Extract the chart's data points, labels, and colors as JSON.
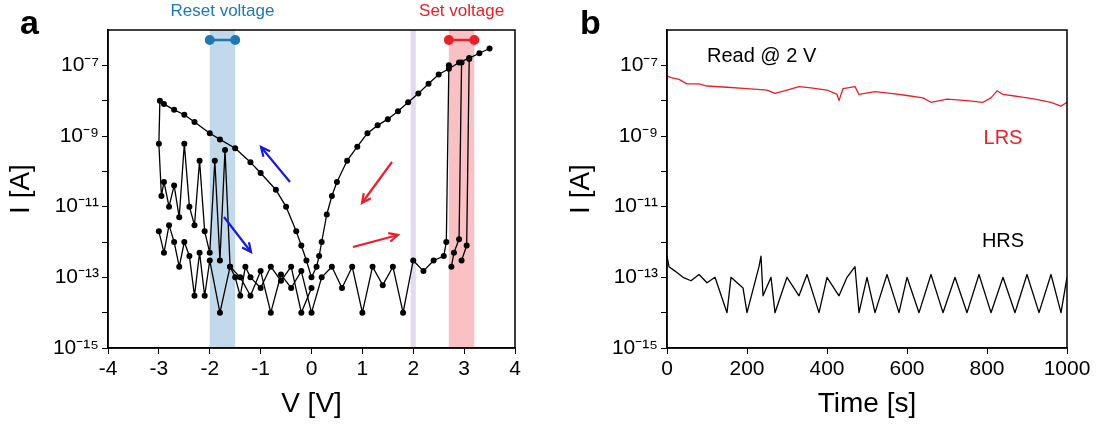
{
  "chart_data": [
    {
      "type": "line",
      "xlabel": "V [V]",
      "ylabel": "I [A]",
      "annotations": [
        "a"
      ],
      "log": "y",
      "grid": false,
      "legend": false,
      "marker": "circle",
      "xlim": [
        -4,
        4
      ],
      "xticks": [
        -4,
        -3,
        -2,
        -1,
        0,
        1,
        2,
        3,
        4
      ],
      "ylim": [
        1e-15,
        1e-06
      ],
      "yticks": [
        {
          "value": 1e-15,
          "label": "10⁻¹⁵"
        },
        {
          "value": 1e-14,
          "label": null
        },
        {
          "value": 1e-13,
          "label": "10⁻¹³"
        },
        {
          "value": 1e-12,
          "label": null
        },
        {
          "value": 1e-11,
          "label": "10⁻¹¹"
        },
        {
          "value": 1e-10,
          "label": null
        },
        {
          "value": 1e-09,
          "label": "10⁻⁹"
        },
        {
          "value": 1e-08,
          "label": null
        },
        {
          "value": 1e-07,
          "label": "10⁻⁷"
        }
      ],
      "bands": [
        {
          "axis": "x",
          "from": -2,
          "to": -1.5,
          "label": "Reset voltage",
          "color": "#1f77b4"
        },
        {
          "axis": "x",
          "from": 1.95,
          "to": 2.05,
          "color": "#9b7fc0"
        },
        {
          "axis": "x",
          "from": 2.7,
          "to": 3.2,
          "label": "Set voltage",
          "color": "#e8202a"
        }
      ],
      "series": [
        {
          "color": "#000000",
          "x": [
            3.5,
            3.3,
            3.1,
            2.9,
            2.7,
            2.5,
            2.3,
            2.1,
            1.9,
            1.7,
            1.5,
            1.3,
            1.1,
            0.9,
            0.7,
            0.5,
            0.4,
            0.3,
            0.2,
            0.15,
            0.1,
            0,
            -0.1,
            -0.2,
            -0.3,
            -0.5,
            -0.7,
            -1,
            -1.2,
            -1.5,
            -1.8,
            -2,
            -2.3,
            -2.5,
            -2.7,
            -2.9,
            -2.98,
            -3,
            -2.95,
            -2.9,
            -2.8,
            -2.7,
            -2.6,
            -2.5,
            -2.4,
            -2.3,
            -2.2,
            -2.1,
            -2,
            -1.9,
            -1.8,
            -1.7,
            -1.6,
            -1.5,
            -1.4,
            -1.3,
            -1.2,
            -1,
            -0.8,
            -0.6,
            -0.4,
            -0.2,
            0
          ],
          "values": [
            3e-07,
            2.2e-07,
            1.6e-07,
            1.2e-07,
            8e-08,
            5.5e-08,
            3e-08,
            1.6e-08,
            9e-09,
            5e-09,
            3e-09,
            2e-09,
            1.2e-09,
            5e-10,
            2e-10,
            5e-11,
            2e-11,
            6e-12,
            1e-12,
            4e-13,
            2e-13,
            1e-13,
            3e-13,
            8e-13,
            2e-12,
            1e-11,
            3e-11,
            9e-11,
            1.8e-10,
            4.5e-10,
            8e-10,
            1.2e-09,
            2.5e-09,
            4e-09,
            5.5e-09,
            8e-09,
            1e-08,
            6e-10,
            2e-11,
            5e-11,
            1e-11,
            4e-11,
            5e-12,
            6e-10,
            1e-11,
            3e-12,
            2e-10,
            2e-12,
            5e-13,
            2e-10,
            3e-13,
            4e-10,
            2e-13,
            1e-13,
            3e-14,
            2e-13,
            1e-13,
            5e-14,
            2e-13,
            8e-14,
            2e-13,
            1e-14,
            5e-14
          ]
        },
        {
          "color": "#000000",
          "x": [
            -3,
            -2.9,
            -2.8,
            -2.7,
            -2.6,
            -2.5,
            -2.4,
            -2.3,
            -2.2,
            -2.1,
            -2,
            -1.8,
            -1.6,
            -1.4,
            -1.2,
            -1,
            -0.8,
            -0.6,
            -0.4,
            -0.2,
            0,
            0.2,
            0.4,
            0.6,
            0.8,
            1,
            1.2,
            1.4,
            1.6,
            1.8,
            2,
            2.2,
            2.4,
            2.6,
            2.65,
            2.7
          ],
          "values": [
            2e-12,
            5e-13,
            3e-12,
            1e-12,
            2e-13,
            1e-12,
            4e-13,
            3e-14,
            5e-13,
            3e-14,
            3e-13,
            1e-14,
            2e-13,
            1e-13,
            3e-14,
            1.5e-13,
            1e-14,
            1.2e-13,
            5e-14,
            1.5e-13,
            1e-14,
            1e-13,
            2e-13,
            5e-14,
            2e-13,
            1e-14,
            2e-13,
            6e-14,
            2e-13,
            1e-14,
            3e-13,
            1.5e-13,
            3e-13,
            4e-13,
            1e-12,
            1e-07
          ]
        },
        {
          "color": "#000000",
          "x": [
            2.75,
            2.8,
            2.9,
            2.95
          ],
          "values": [
            2e-13,
            5e-13,
            1.2e-12,
            1.2e-07
          ]
        },
        {
          "color": "#000000",
          "x": [
            2.95,
            3.05,
            3.1
          ],
          "values": [
            3e-13,
            8e-13,
            1.5e-07
          ]
        }
      ]
    },
    {
      "type": "line",
      "xlabel": "Time [s]",
      "ylabel": "I [A]",
      "annotations": [
        "b",
        "Read @ 2 V"
      ],
      "log": "y",
      "grid": false,
      "legend": false,
      "marker": "none",
      "xlim": [
        0,
        1000
      ],
      "xticks": [
        0,
        200,
        400,
        600,
        800,
        1000
      ],
      "ylim": [
        1e-15,
        1e-06
      ],
      "yticks": [
        {
          "value": 1e-15,
          "label": "10⁻¹⁵"
        },
        {
          "value": 1e-14,
          "label": null
        },
        {
          "value": 1e-13,
          "label": "10⁻¹³"
        },
        {
          "value": 1e-12,
          "label": null
        },
        {
          "value": 1e-11,
          "label": "10⁻¹¹"
        },
        {
          "value": 1e-10,
          "label": null
        },
        {
          "value": 1e-09,
          "label": "10⁻⁹"
        },
        {
          "value": 1e-08,
          "label": null
        },
        {
          "value": 1e-07,
          "label": "10⁻⁷"
        }
      ],
      "series": [
        {
          "name": "LRS",
          "color": "#e8202a",
          "x": [
            0,
            10,
            30,
            50,
            80,
            100,
            150,
            200,
            250,
            270,
            300,
            330,
            360,
            400,
            425,
            430,
            440,
            470,
            480,
            520,
            560,
            600,
            640,
            660,
            700,
            750,
            790,
            810,
            825,
            840,
            880,
            920,
            960,
            985,
            1000
          ],
          "values": [
            5e-08,
            4.5e-08,
            4e-08,
            3e-08,
            3e-08,
            2.6e-08,
            2.4e-08,
            2.2e-08,
            2e-08,
            1.6e-08,
            2e-08,
            2.5e-08,
            2.3e-08,
            2e-08,
            1.5e-08,
            1e-08,
            2.2e-08,
            2.5e-08,
            1.5e-08,
            1.8e-08,
            1.6e-08,
            1.4e-08,
            1.2e-08,
            9e-09,
            1.1e-08,
            1e-08,
            9e-09,
            1.2e-08,
            1.9e-08,
            1.5e-08,
            1.3e-08,
            1.1e-08,
            9e-09,
            7e-09,
            9e-09
          ]
        },
        {
          "name": "HRS",
          "color": "#000000",
          "x": [
            0,
            5,
            20,
            40,
            60,
            80,
            100,
            120,
            150,
            160,
            190,
            200,
            230,
            235,
            240,
            260,
            270,
            300,
            330,
            350,
            380,
            400,
            430,
            450,
            470,
            480,
            500,
            520,
            550,
            580,
            600,
            630,
            660,
            690,
            720,
            750,
            780,
            810,
            840,
            870,
            900,
            930,
            960,
            985,
            1000
          ],
          "values": [
            4e-13,
            2e-13,
            1.5e-13,
            1e-13,
            8e-14,
            1.2e-13,
            7e-14,
            1e-13,
            1e-14,
            1e-13,
            5e-14,
            1e-14,
            2e-13,
            4e-13,
            3e-14,
            1e-13,
            1e-14,
            1e-13,
            3e-14,
            1.2e-13,
            1e-14,
            1e-13,
            3e-14,
            1e-13,
            2e-13,
            1e-14,
            1e-13,
            1e-14,
            1.2e-13,
            1e-14,
            1e-13,
            1e-14,
            1.2e-13,
            1e-14,
            1e-13,
            1e-14,
            1.2e-13,
            1e-14,
            1e-13,
            1e-14,
            1.2e-13,
            1e-14,
            1.2e-13,
            1e-14,
            1e-13
          ]
        }
      ]
    }
  ]
}
